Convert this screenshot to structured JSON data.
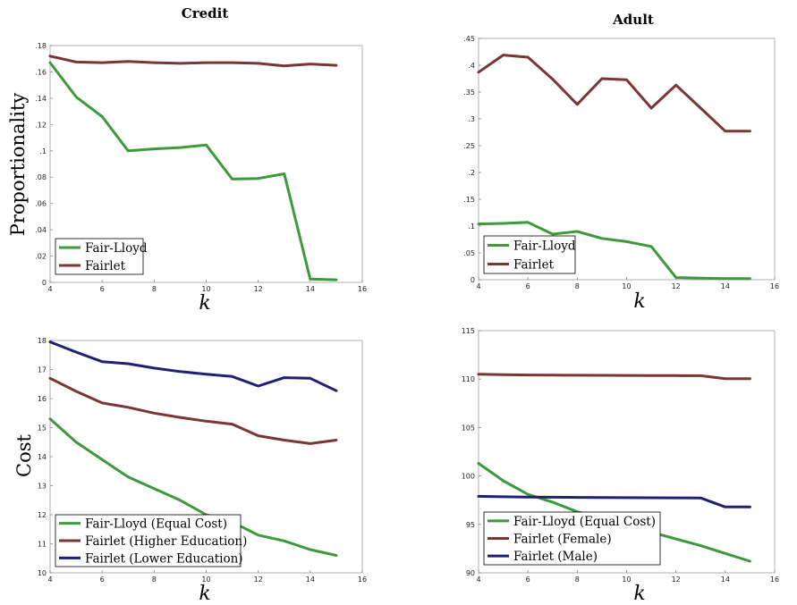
{
  "colors": {
    "fair_lloyd": "#3c9a3c",
    "fairlet": "#7b3535",
    "fairlet_lower": "#1f1f78"
  },
  "labels": {
    "ylabel_top": "Proportionality",
    "ylabel_bottom": "Cost",
    "xlabel": "k"
  },
  "chart_data": [
    {
      "type": "line",
      "title": "Credit",
      "xlabel": "k",
      "ylabel": "Proportionality",
      "xlim": [
        4,
        16
      ],
      "ylim": [
        0,
        0.18
      ],
      "xticks": [
        4,
        6,
        8,
        10,
        12,
        14,
        16
      ],
      "yticks": [
        0,
        0.02,
        0.04,
        0.06,
        0.08,
        0.1,
        0.12,
        0.14,
        0.16,
        0.18
      ],
      "x": [
        4,
        5,
        6,
        7,
        8,
        9,
        10,
        11,
        12,
        13,
        14,
        15
      ],
      "legend_position": "bottom-left",
      "series": [
        {
          "name": "Fair-Lloyd",
          "color_key": "fair_lloyd",
          "values": [
            0.167,
            0.141,
            0.126,
            0.1,
            0.1015,
            0.1025,
            0.1045,
            0.0785,
            0.079,
            0.0825,
            0.0025,
            0.002
          ]
        },
        {
          "name": "Fairlet",
          "color_key": "fairlet",
          "values": [
            0.172,
            0.1675,
            0.167,
            0.168,
            0.167,
            0.1665,
            0.167,
            0.167,
            0.1665,
            0.1645,
            0.166,
            0.165
          ]
        }
      ]
    },
    {
      "type": "line",
      "title": "Adult",
      "xlabel": "k",
      "ylabel": "",
      "xlim": [
        4,
        16
      ],
      "ylim": [
        0,
        0.45
      ],
      "xticks": [
        4,
        6,
        8,
        10,
        12,
        14,
        16
      ],
      "yticks": [
        0,
        0.05,
        0.1,
        0.15,
        0.2,
        0.25,
        0.3,
        0.35,
        0.4,
        0.45
      ],
      "x": [
        4,
        5,
        6,
        7,
        8,
        9,
        10,
        11,
        12,
        13,
        14,
        15
      ],
      "legend_position": "bottom-left",
      "series": [
        {
          "name": "Fair-Lloyd",
          "color_key": "fair_lloyd",
          "values": [
            0.104,
            0.105,
            0.107,
            0.085,
            0.09,
            0.077,
            0.071,
            0.062,
            0.004,
            0.003,
            0.002,
            0.002
          ]
        },
        {
          "name": "Fairlet",
          "color_key": "fairlet",
          "values": [
            0.387,
            0.419,
            0.415,
            0.374,
            0.327,
            0.375,
            0.373,
            0.32,
            0.363,
            0.32,
            0.277,
            0.277
          ]
        }
      ]
    },
    {
      "type": "line",
      "title": "",
      "xlabel": "k",
      "ylabel": "Cost",
      "xlim": [
        4,
        16
      ],
      "ylim": [
        10,
        18
      ],
      "xticks": [
        4,
        6,
        8,
        10,
        12,
        14,
        16
      ],
      "yticks": [
        10,
        11,
        12,
        13,
        14,
        15,
        16,
        17,
        18
      ],
      "x": [
        4,
        5,
        6,
        7,
        8,
        9,
        10,
        11,
        12,
        13,
        14,
        15
      ],
      "legend_position": "bottom-left",
      "series": [
        {
          "name": "Fair-Lloyd (Equal Cost)",
          "color_key": "fair_lloyd",
          "values": [
            15.3,
            14.5,
            13.9,
            13.3,
            12.9,
            12.5,
            12.0,
            11.75,
            11.3,
            11.1,
            10.8,
            10.6
          ]
        },
        {
          "name": "Fairlet (Higher Education)",
          "color_key": "fairlet",
          "values": [
            16.7,
            16.25,
            15.85,
            15.7,
            15.5,
            15.35,
            15.22,
            15.12,
            14.72,
            14.57,
            14.45,
            14.57
          ]
        },
        {
          "name": "Fairlet (Lower Education)",
          "color_key": "fairlet_lower",
          "values": [
            17.95,
            17.6,
            17.27,
            17.2,
            17.05,
            16.93,
            16.84,
            16.76,
            16.43,
            16.72,
            16.7,
            16.27
          ]
        }
      ]
    },
    {
      "type": "line",
      "title": "",
      "xlabel": "k",
      "ylabel": "",
      "xlim": [
        4,
        16
      ],
      "ylim": [
        90,
        115
      ],
      "xticks": [
        4,
        6,
        8,
        10,
        12,
        14,
        16
      ],
      "yticks": [
        90,
        95,
        100,
        105,
        110,
        115
      ],
      "x": [
        4,
        5,
        6,
        7,
        8,
        9,
        10,
        11,
        12,
        13,
        14,
        15
      ],
      "legend_position": "bottom-left",
      "series": [
        {
          "name": "Fair-Lloyd (Equal Cost)",
          "color_key": "fair_lloyd",
          "values": [
            101.3,
            99.5,
            98.1,
            97.3,
            96.3,
            95.7,
            95.2,
            94.2,
            93.5,
            92.8,
            92.0,
            91.2
          ]
        },
        {
          "name": "Fairlet (Female)",
          "color_key": "fairlet",
          "values": [
            110.5,
            110.45,
            110.42,
            110.41,
            110.4,
            110.39,
            110.38,
            110.37,
            110.36,
            110.35,
            110.05,
            110.05
          ]
        },
        {
          "name": "Fairlet (Male)",
          "color_key": "fairlet_lower",
          "values": [
            97.9,
            97.85,
            97.82,
            97.8,
            97.79,
            97.78,
            97.76,
            97.75,
            97.74,
            97.73,
            96.8,
            96.8
          ]
        }
      ]
    }
  ]
}
